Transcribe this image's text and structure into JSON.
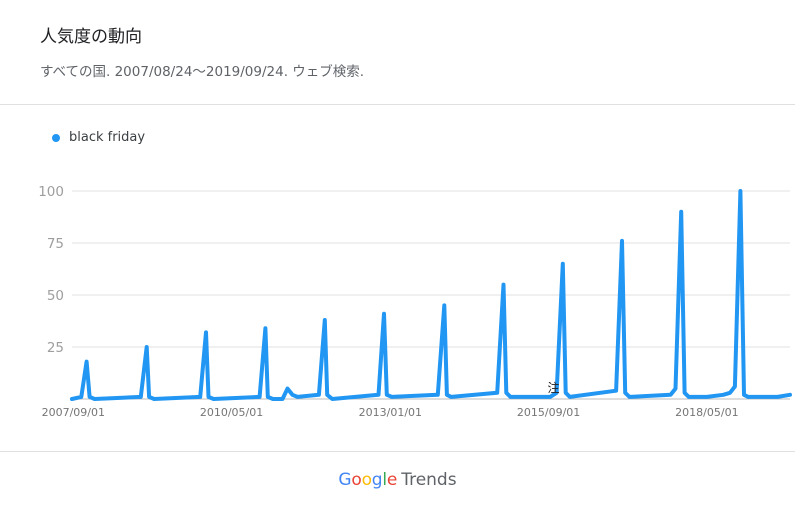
{
  "header": {
    "title": "人気度の動向",
    "subtitle": "すべての国. 2007/08/24～2019/09/24. ウェブ検索."
  },
  "colors": {
    "series": "#2196f3",
    "grid": "#e0e0e0",
    "axis_text": "#9e9e9e"
  },
  "footer": {
    "google_letters": [
      {
        "ch": "G",
        "color": "#4285f4"
      },
      {
        "ch": "o",
        "color": "#ea4335"
      },
      {
        "ch": "o",
        "color": "#fbbc05"
      },
      {
        "ch": "g",
        "color": "#4285f4"
      },
      {
        "ch": "l",
        "color": "#34a853"
      },
      {
        "ch": "e",
        "color": "#ea4335"
      }
    ],
    "trends": "Trends"
  },
  "chart_data": {
    "type": "line",
    "title": "",
    "xlabel": "",
    "ylabel": "",
    "ylim": [
      0,
      100
    ],
    "yticks": [
      25,
      50,
      75,
      100
    ],
    "xticks": [
      "2007/09/01",
      "2010/05/01",
      "2013/01/01",
      "2015/09/01",
      "2018/05/01"
    ],
    "grid": true,
    "legend_position": "top-left",
    "annotation": {
      "label": "注",
      "x": "2015/10/01"
    },
    "series": [
      {
        "name": "black friday",
        "color": "#2196f3",
        "points": [
          [
            "2007/08/24",
            0
          ],
          [
            "2007/10/20",
            1
          ],
          [
            "2007/11/22",
            18
          ],
          [
            "2007/12/10",
            1
          ],
          [
            "2008/01/10",
            0
          ],
          [
            "2008/10/20",
            1
          ],
          [
            "2008/11/25",
            25
          ],
          [
            "2008/12/10",
            1
          ],
          [
            "2009/01/10",
            0
          ],
          [
            "2009/10/20",
            1
          ],
          [
            "2009/11/25",
            32
          ],
          [
            "2009/12/10",
            1
          ],
          [
            "2010/01/10",
            0
          ],
          [
            "2010/10/20",
            1
          ],
          [
            "2010/11/25",
            34
          ],
          [
            "2010/12/10",
            1
          ],
          [
            "2011/01/10",
            0
          ],
          [
            "2011/03/10",
            0
          ],
          [
            "2011/04/10",
            5
          ],
          [
            "2011/05/10",
            2
          ],
          [
            "2011/06/10",
            1
          ],
          [
            "2011/10/20",
            2
          ],
          [
            "2011/11/25",
            38
          ],
          [
            "2011/12/10",
            2
          ],
          [
            "2012/01/10",
            0
          ],
          [
            "2012/10/20",
            2
          ],
          [
            "2012/11/23",
            41
          ],
          [
            "2012/12/10",
            2
          ],
          [
            "2013/01/10",
            1
          ],
          [
            "2013/10/20",
            2
          ],
          [
            "2013/11/29",
            45
          ],
          [
            "2013/12/15",
            2
          ],
          [
            "2014/01/10",
            1
          ],
          [
            "2014/10/20",
            3
          ],
          [
            "2014/11/28",
            55
          ],
          [
            "2014/12/15",
            3
          ],
          [
            "2015/01/10",
            1
          ],
          [
            "2015/09/10",
            1
          ],
          [
            "2015/10/20",
            3
          ],
          [
            "2015/11/27",
            65
          ],
          [
            "2015/12/15",
            3
          ],
          [
            "2016/01/10",
            1
          ],
          [
            "2016/10/20",
            4
          ],
          [
            "2016/11/25",
            76
          ],
          [
            "2016/12/15",
            3
          ],
          [
            "2017/01/10",
            1
          ],
          [
            "2017/09/20",
            2
          ],
          [
            "2017/10/20",
            5
          ],
          [
            "2017/11/24",
            90
          ],
          [
            "2017/12/15",
            3
          ],
          [
            "2018/01/10",
            1
          ],
          [
            "2018/05/01",
            1
          ],
          [
            "2018/08/10",
            2
          ],
          [
            "2018/09/20",
            3
          ],
          [
            "2018/10/20",
            6
          ],
          [
            "2018/11/23",
            100
          ],
          [
            "2018/12/15",
            2
          ],
          [
            "2019/01/10",
            1
          ],
          [
            "2019/04/10",
            1
          ],
          [
            "2019/07/10",
            1
          ],
          [
            "2019/09/24",
            2
          ]
        ]
      }
    ]
  }
}
